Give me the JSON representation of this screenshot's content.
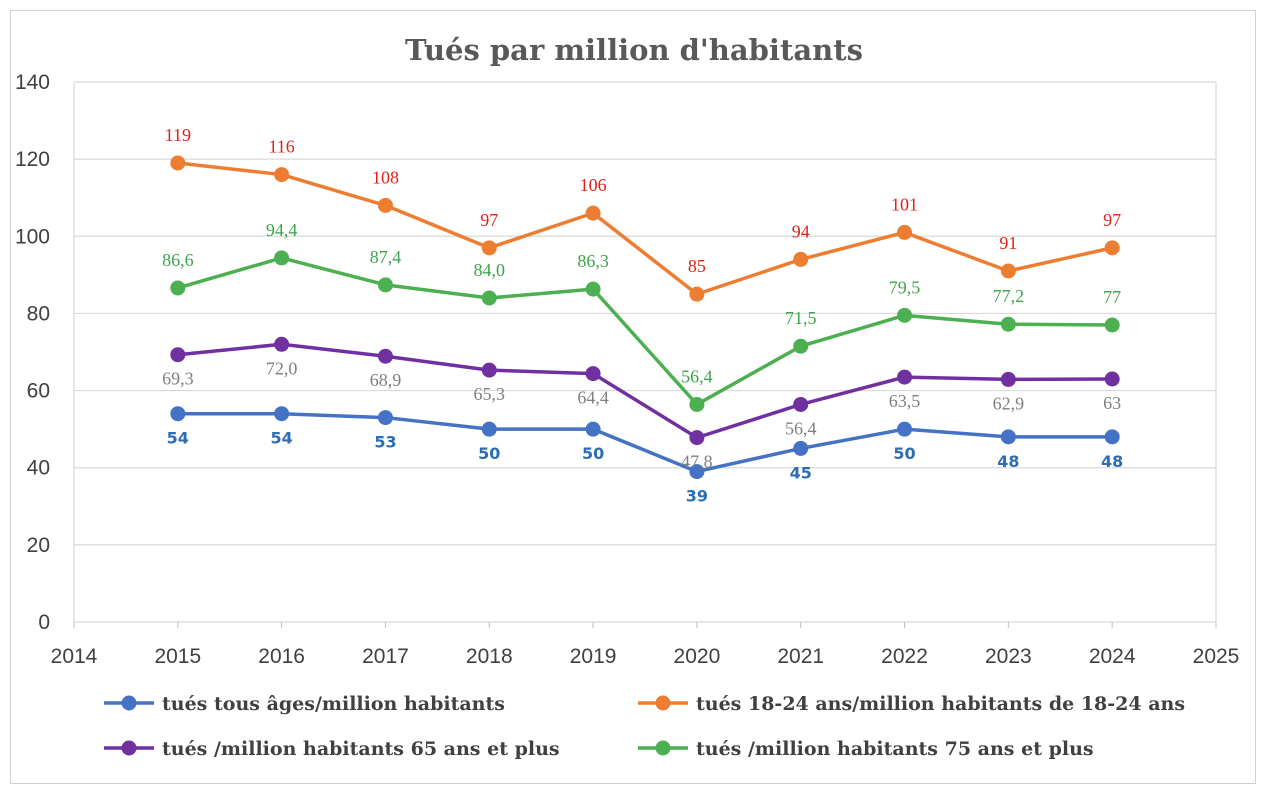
{
  "chart_data": {
    "type": "line",
    "title": "Tués par million d'habitants",
    "xlabel": "",
    "ylabel": "",
    "xlim": [
      2014,
      2025
    ],
    "ylim": [
      0,
      140
    ],
    "x_ticks": [
      "2014",
      "2015",
      "2016",
      "2017",
      "2018",
      "2019",
      "2020",
      "2021",
      "2022",
      "2023",
      "2024",
      "2025"
    ],
    "y_ticks": [
      "0",
      "20",
      "40",
      "60",
      "80",
      "100",
      "120",
      "140"
    ],
    "grid": "horizontal",
    "legend_position": "bottom",
    "x": [
      2015,
      2016,
      2017,
      2018,
      2019,
      2020,
      2021,
      2022,
      2023,
      2024
    ],
    "series": [
      {
        "name": "tués tous âges/million habitants",
        "color": "#4472c4",
        "label_color": "#2e6db4",
        "label_style": "sans",
        "label_position": "below",
        "values": [
          54,
          54,
          53,
          50,
          50,
          39,
          45,
          50,
          48,
          48
        ],
        "labels": [
          "54",
          "54",
          "53",
          "50",
          "50",
          "39",
          "45",
          "50",
          "48",
          "48"
        ]
      },
      {
        "name": "tués 18-24 ans/million habitants de 18-24 ans",
        "color": "#ed7d31",
        "label_color": "#e0201a",
        "label_style": "serif",
        "label_position": "above",
        "values": [
          119,
          116,
          108,
          97,
          106,
          85,
          94,
          101,
          91,
          97
        ],
        "labels": [
          "119",
          "116",
          "108",
          "97",
          "106",
          "85",
          "94",
          "101",
          "91",
          "97"
        ]
      },
      {
        "name": "tués /million habitants 65 ans et plus",
        "color": "#7030a0",
        "label_color": "#7f7f7f",
        "label_style": "serif",
        "label_position": "below",
        "values": [
          69.3,
          72.0,
          68.9,
          65.3,
          64.4,
          47.8,
          56.4,
          63.5,
          62.9,
          63
        ],
        "labels": [
          "69,3",
          "72,0",
          "68,9",
          "65,3",
          "64,4",
          "47,8",
          "56,4",
          "63,5",
          "62,9",
          "63"
        ]
      },
      {
        "name": "tués /million habitants 75 ans et plus",
        "color": "#4caf50",
        "label_color": "#3fa34d",
        "label_style": "serif",
        "label_position": "above",
        "values": [
          86.6,
          94.4,
          87.4,
          84.0,
          86.3,
          56.4,
          71.5,
          79.5,
          77.2,
          77
        ],
        "labels": [
          "86,6",
          "94,4",
          "87,4",
          "84,0",
          "86,3",
          "56,4",
          "71,5",
          "79,5",
          "77,2",
          "77"
        ]
      }
    ]
  }
}
